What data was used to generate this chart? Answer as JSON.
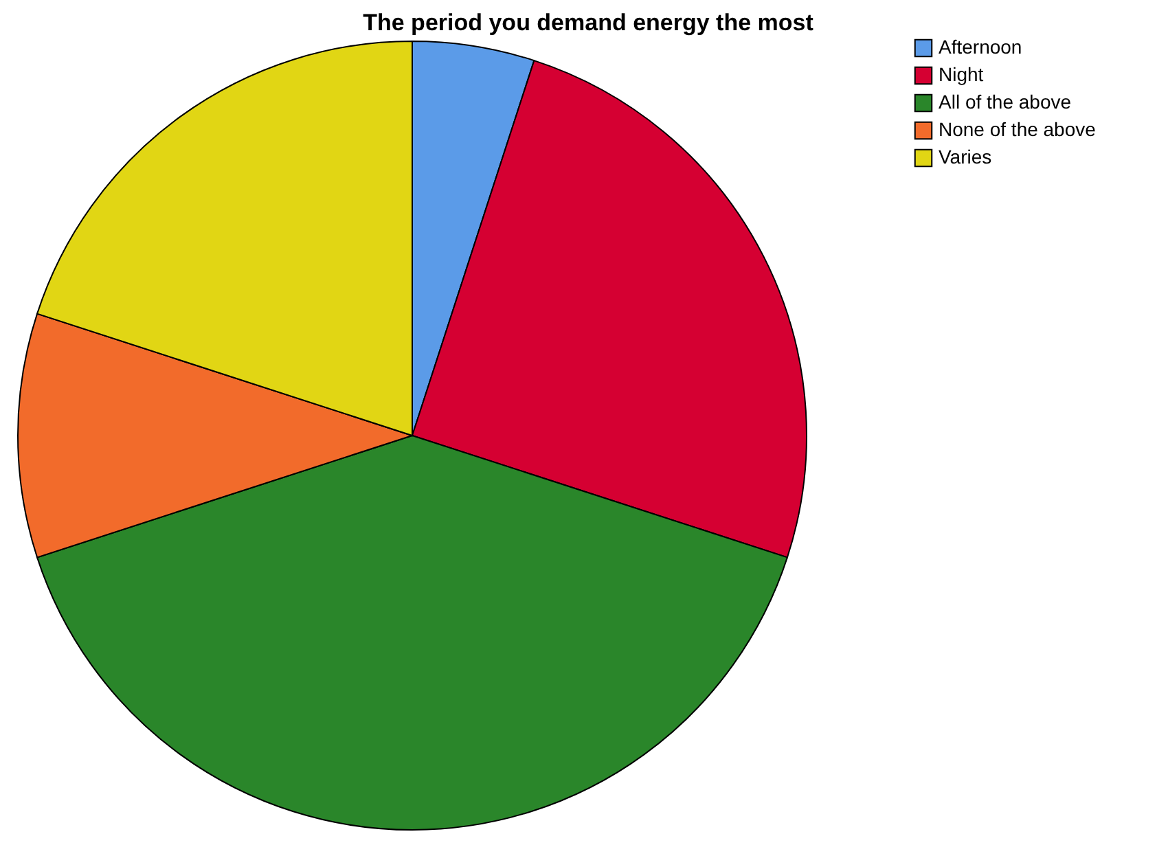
{
  "chart_data": {
    "type": "pie",
    "title": "The period you demand energy the most",
    "categories": [
      "Afternoon",
      "Night",
      "All of the above",
      "None of the above",
      "Varies"
    ],
    "values": [
      5,
      25,
      40,
      10,
      20
    ],
    "colors": [
      "#5b9be8",
      "#d50032",
      "#2a862a",
      "#f26b2b",
      "#e1d614"
    ],
    "legend": "top right"
  }
}
